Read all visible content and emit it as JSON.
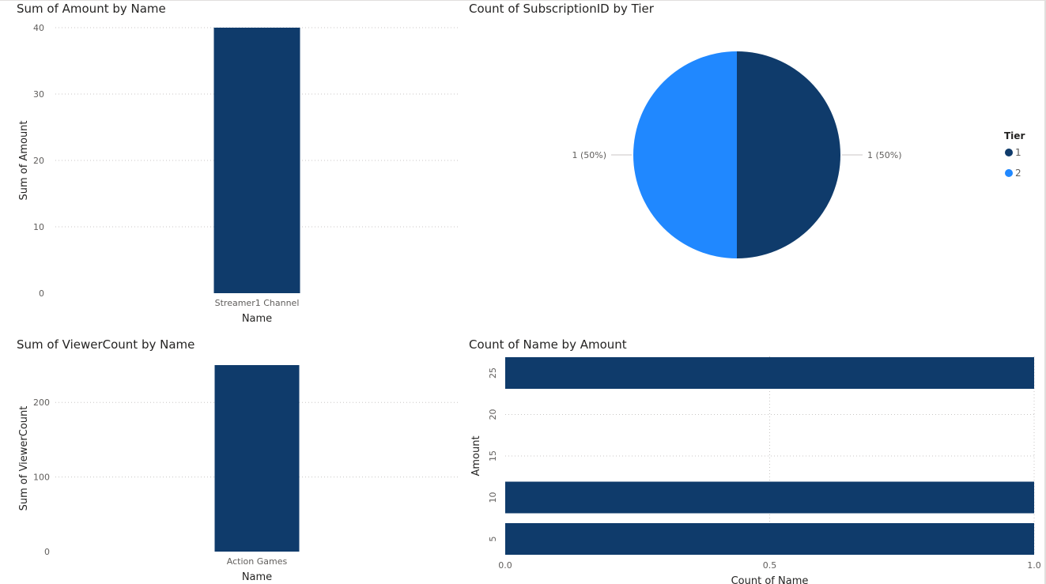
{
  "chart_data": [
    {
      "type": "bar",
      "title": "Sum of Amount by Name",
      "xlabel": "Name",
      "ylabel": "Sum of Amount",
      "categories": [
        "Streamer1 Channel"
      ],
      "values": [
        40
      ],
      "ylim": [
        0,
        40
      ],
      "yticks": [
        0,
        10,
        20,
        30,
        40
      ],
      "color": "#0f3b6b",
      "grid": true
    },
    {
      "type": "pie",
      "title": "Count of SubscriptionID by Tier",
      "legend_title": "Tier",
      "legend_position": "right",
      "slices": [
        {
          "label": "1",
          "value": 1,
          "percent": "50%",
          "data_label": "1 (50%)",
          "color": "#0f3b6b"
        },
        {
          "label": "2",
          "value": 1,
          "percent": "50%",
          "data_label": "1 (50%)",
          "color": "#2088ff"
        }
      ]
    },
    {
      "type": "bar",
      "title": "Sum of ViewerCount by Name",
      "xlabel": "Name",
      "ylabel": "Sum of ViewerCount",
      "categories": [
        "Action Games"
      ],
      "values": [
        250
      ],
      "ylim": [
        0,
        250
      ],
      "yticks": [
        0,
        100,
        200
      ],
      "color": "#0f3b6b",
      "grid": true
    },
    {
      "type": "bar",
      "orientation": "horizontal",
      "title": "Count of Name by Amount",
      "xlabel": "Count of Name",
      "ylabel": "Amount",
      "categories": [
        5,
        10,
        25
      ],
      "values": [
        1,
        1,
        1
      ],
      "xlim": [
        0,
        1
      ],
      "xticks": [
        "0.0",
        "0.5",
        "1.0"
      ],
      "ylim": [
        3,
        27
      ],
      "yticks": [
        5,
        10,
        15,
        20,
        25
      ],
      "color": "#0f3b6b",
      "grid": true
    }
  ]
}
